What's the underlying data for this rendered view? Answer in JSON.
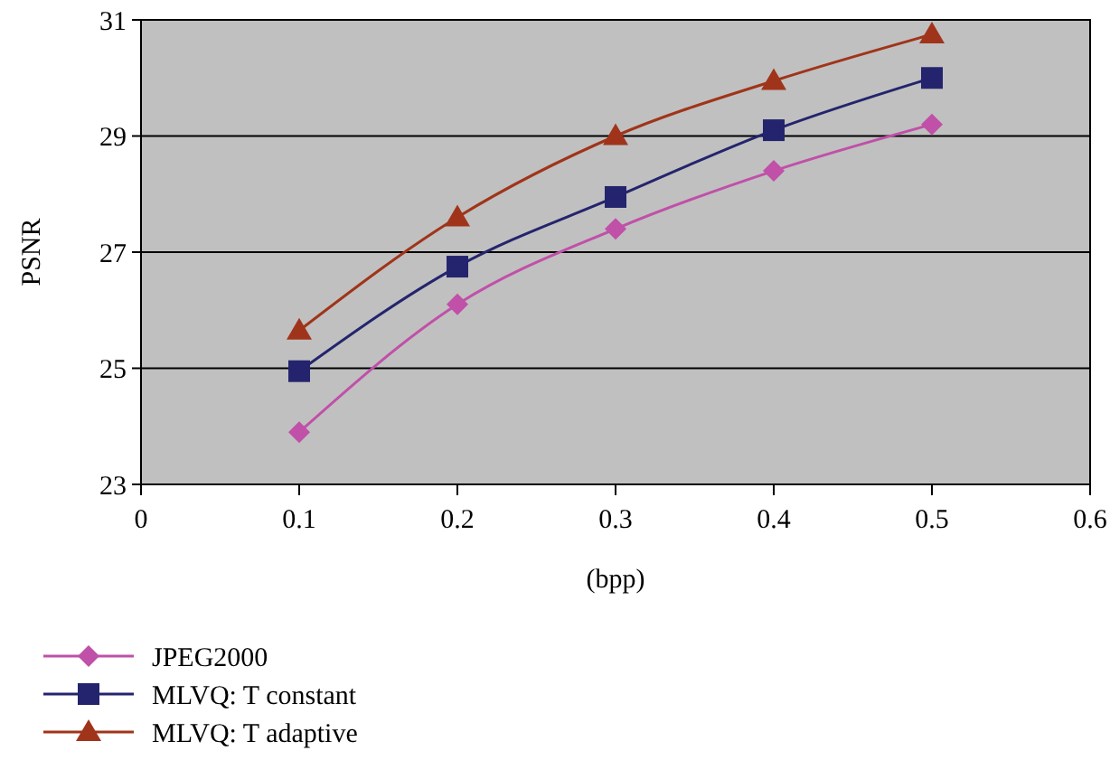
{
  "chart_data": {
    "type": "line",
    "xlabel": "(bpp)",
    "ylabel": "PSNR",
    "x": [
      0.1,
      0.2,
      0.3,
      0.4,
      0.5
    ],
    "xlim": [
      0,
      0.6
    ],
    "xticks": [
      0,
      0.1,
      0.2,
      0.3,
      0.4,
      0.5,
      0.6
    ],
    "ylim": [
      23,
      31
    ],
    "yticks": [
      23,
      25,
      27,
      29,
      31
    ],
    "grid": "y",
    "legend": "bottom left",
    "series": [
      {
        "name": "JPEG2000",
        "color": "#c050a8",
        "marker": "diamond",
        "values": [
          23.9,
          26.1,
          27.4,
          28.4,
          29.2
        ]
      },
      {
        "name": "MLVQ: T constant",
        "color": "#24246e",
        "marker": "square",
        "values": [
          24.95,
          26.75,
          27.95,
          29.1,
          30.0
        ]
      },
      {
        "name": "MLVQ: T adaptive",
        "color": "#a0341a",
        "marker": "triangle",
        "values": [
          25.65,
          27.6,
          29.0,
          29.95,
          30.75
        ]
      }
    ]
  }
}
